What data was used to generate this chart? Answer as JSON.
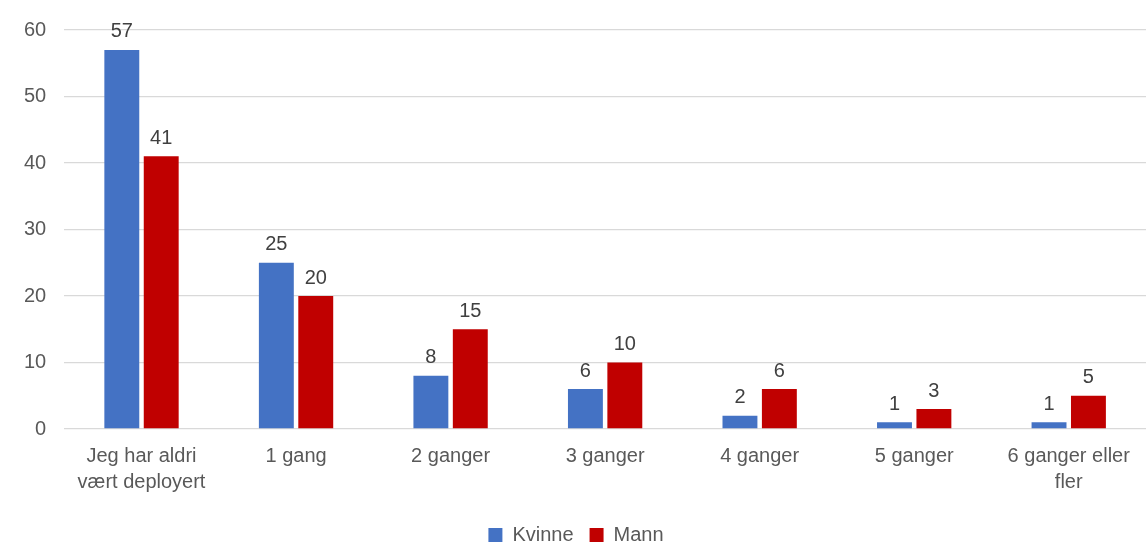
{
  "chart_data": {
    "type": "bar",
    "categories": [
      "Jeg har aldri vært deployert",
      "1 gang",
      "2 ganger",
      "3 ganger",
      "4 ganger",
      "5 ganger",
      "6 ganger eller fler"
    ],
    "series": [
      {
        "name": "Kvinne",
        "color": "#4472c4",
        "values": [
          57,
          25,
          8,
          6,
          2,
          1,
          1
        ]
      },
      {
        "name": "Mann",
        "color": "#c00000",
        "values": [
          41,
          20,
          15,
          10,
          6,
          3,
          5
        ]
      }
    ],
    "ylim": [
      0,
      60
    ],
    "yticks": [
      0,
      10,
      20,
      30,
      40,
      50,
      60
    ],
    "grid": "y",
    "legend": "bottom",
    "data_labels": true
  }
}
